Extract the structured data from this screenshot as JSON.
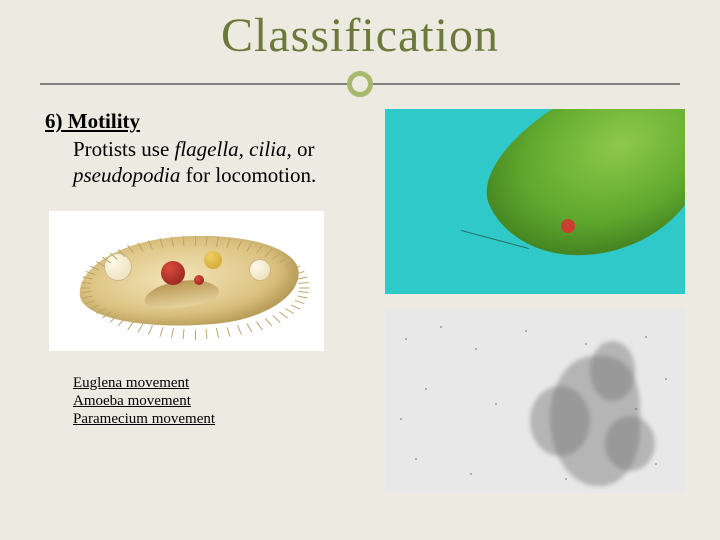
{
  "title": "Classification",
  "section": {
    "heading": "6) Motility",
    "body_parts": {
      "p1": "Protists use ",
      "i1": "flagella, cilia,",
      "p2": " or ",
      "i2": "pseudopodia",
      "p3": " for locomotion."
    }
  },
  "links": [
    "Euglena movement",
    "Amoeba movement",
    "Paramecium movement"
  ],
  "colors": {
    "background": "#edeae1",
    "title": "#6b7a3a",
    "accent_ring": "#a8b96e",
    "divider": "#808080",
    "euglena_bg": "#2fc9c9",
    "amoeba_bg": "#e8e8e8"
  },
  "images": {
    "top_right": "euglena-micrograph",
    "bottom_right": "amoeba-micrograph",
    "left_illustration": "paramecium-illustration"
  }
}
